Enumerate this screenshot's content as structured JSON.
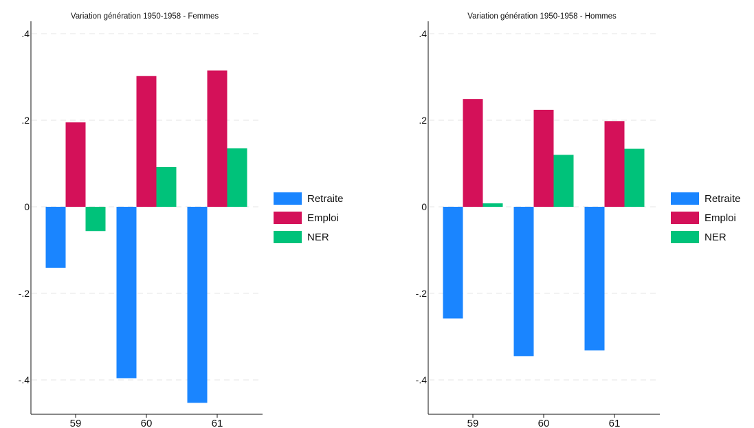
{
  "chart_data": [
    {
      "type": "bar",
      "title": "Variation génération 1950-1958 - Femmes",
      "categories": [
        "59",
        "60",
        "61"
      ],
      "ylim": [
        -0.47,
        0.42
      ],
      "yticks": [
        0.4,
        0.2,
        0,
        -0.2,
        -0.4
      ],
      "ytick_labels": [
        ".4",
        ".2",
        "0",
        "-.2",
        "-.4"
      ],
      "grid": true,
      "legend_position": "right",
      "series": [
        {
          "name": "Retraite",
          "color": "#1a85ff",
          "values": [
            -0.141,
            -0.396,
            -0.453
          ]
        },
        {
          "name": "Emploi",
          "color": "#d41159",
          "values": [
            0.195,
            0.302,
            0.315
          ]
        },
        {
          "name": "NER",
          "color": "#00c27a",
          "values": [
            -0.056,
            0.092,
            0.135
          ]
        }
      ]
    },
    {
      "type": "bar",
      "title": "Variation génération 1950-1958 - Hommes",
      "categories": [
        "59",
        "60",
        "61"
      ],
      "ylim": [
        -0.47,
        0.42
      ],
      "yticks": [
        0.4,
        0.2,
        0,
        -0.2,
        -0.4
      ],
      "ytick_labels": [
        ".4",
        ".2",
        "0",
        "-.2",
        "-.4"
      ],
      "grid": true,
      "legend_position": "right",
      "series": [
        {
          "name": "Retraite",
          "color": "#1a85ff",
          "values": [
            -0.258,
            -0.345,
            -0.332
          ]
        },
        {
          "name": "Emploi",
          "color": "#d41159",
          "values": [
            0.249,
            0.224,
            0.198
          ]
        },
        {
          "name": "NER",
          "color": "#00c27a",
          "values": [
            0.008,
            0.12,
            0.134
          ]
        }
      ]
    }
  ]
}
